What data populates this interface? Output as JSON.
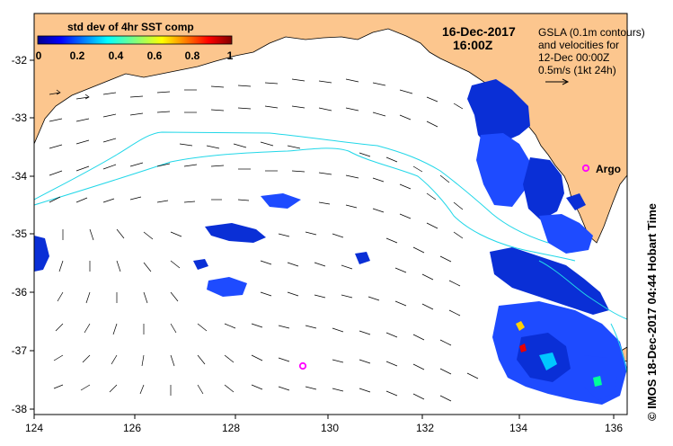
{
  "map": {
    "date": "16-Dec-2017",
    "time": "16:00Z",
    "colorbar": {
      "title": "std dev of 4hr SST comp",
      "ticks": [
        "0",
        "0.2",
        "0.4",
        "0.6",
        "0.8",
        "1"
      ]
    },
    "gsla": {
      "line1": "GSLA (0.1m contours)",
      "line2": "and velocities for",
      "line3": "12-Dec 00:00Z",
      "line4": "0.5m/s (1kt 24h)"
    },
    "argo_label": "Argo",
    "x_ticks": [
      "124",
      "126",
      "128",
      "130",
      "132",
      "134",
      "136"
    ],
    "y_ticks": [
      "-32",
      "-33",
      "-34",
      "-35",
      "-36",
      "-37",
      "-38"
    ],
    "credit": "© IMOS 18-Dec-2017 04:44 Hobart Time",
    "colors": {
      "land": "#fcc68e",
      "ocean": "#ffffff",
      "contour": "#21d7e8",
      "argo": "#ff00ff"
    }
  }
}
